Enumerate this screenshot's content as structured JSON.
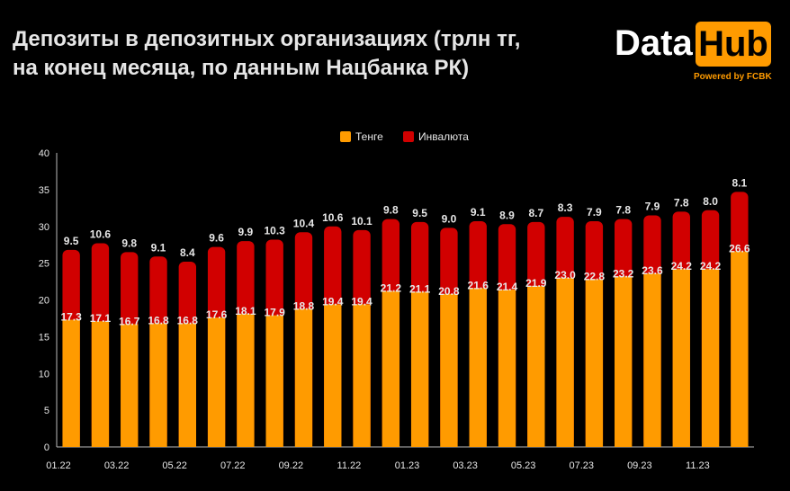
{
  "title_line1": "Депозиты в депозитных организациях (трлн тг,",
  "title_line2": "на конец месяца, по данным Нацбанка РК)",
  "logo": {
    "data": "Data",
    "hub": "Hub",
    "powered": "Powered by FCBK"
  },
  "colors": {
    "tenge": "#ff9b00",
    "fx": "#d10000",
    "background": "#000000"
  },
  "chart_data": {
    "type": "bar",
    "stacked": true,
    "ylim": [
      0,
      40
    ],
    "yticks": [
      0,
      5,
      10,
      15,
      20,
      25,
      30,
      35,
      40
    ],
    "xtick_labels": [
      "01.22",
      "03.22",
      "05.22",
      "07.22",
      "09.22",
      "11.22",
      "01.23",
      "03.23",
      "05.23",
      "07.23",
      "09.23",
      "11.23"
    ],
    "legend_position": "top-center",
    "series": [
      {
        "name": "Тенге",
        "values": [
          17.3,
          17.1,
          16.7,
          16.8,
          16.8,
          17.6,
          18.1,
          17.9,
          18.8,
          19.4,
          19.4,
          21.2,
          21.1,
          20.8,
          21.6,
          21.4,
          21.9,
          23.0,
          22.8,
          23.2,
          23.6,
          24.2,
          24.2,
          26.6
        ]
      },
      {
        "name": "Инвалюта",
        "values": [
          9.5,
          10.6,
          9.8,
          9.1,
          8.4,
          9.6,
          9.9,
          10.3,
          10.4,
          10.6,
          10.1,
          9.8,
          9.5,
          9.0,
          9.1,
          8.9,
          8.7,
          8.3,
          7.9,
          7.8,
          7.9,
          7.8,
          8.0,
          8.1
        ]
      }
    ]
  }
}
